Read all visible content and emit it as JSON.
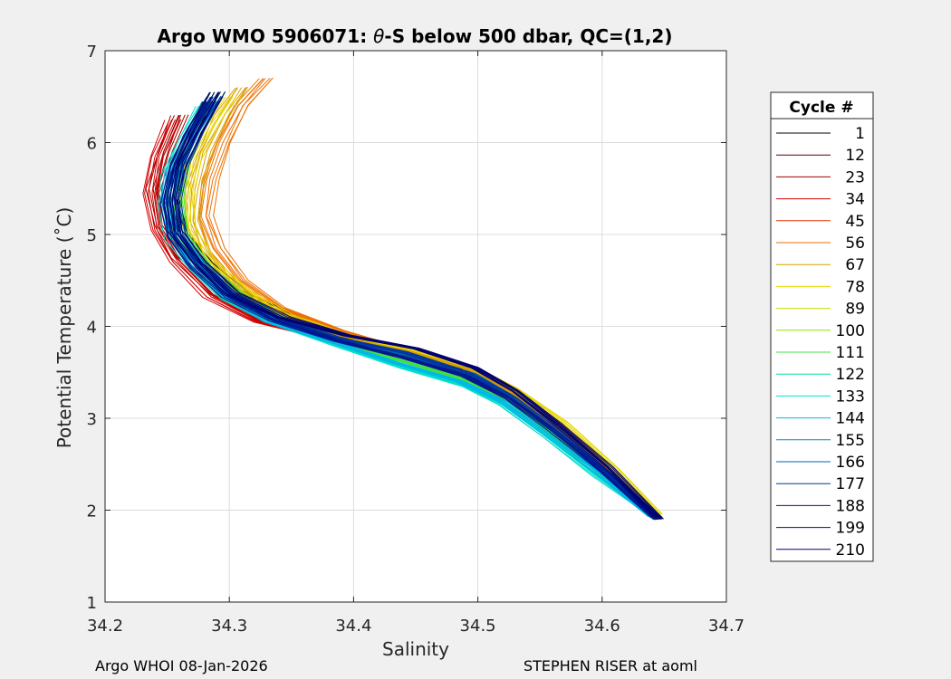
{
  "chart_data": {
    "type": "line",
    "title_prefix": "Argo WMO 5906071: ",
    "title_theta": "θ",
    "title_suffix": "-S below 500 dbar,  QC=(1,2)",
    "xlabel": "Salinity",
    "ylabel": "Potential Temperature (˚C)",
    "xlim": [
      34.2,
      34.7
    ],
    "ylim": [
      1,
      7
    ],
    "xticks": [
      "34.2",
      "34.3",
      "34.4",
      "34.5",
      "34.6",
      "34.7"
    ],
    "yticks": [
      "1",
      "2",
      "3",
      "4",
      "5",
      "6",
      "7"
    ],
    "grid": true,
    "legend": {
      "title": "Cycle #",
      "placement": "outside-right",
      "entries": [
        {
          "label": "1",
          "color": "#000000"
        },
        {
          "label": "12",
          "color": "#5c0000"
        },
        {
          "label": "23",
          "color": "#a00000"
        },
        {
          "label": "34",
          "color": "#d40000"
        },
        {
          "label": "45",
          "color": "#e63200"
        },
        {
          "label": "56",
          "color": "#ee7000"
        },
        {
          "label": "67",
          "color": "#d8a000"
        },
        {
          "label": "78",
          "color": "#e8d800"
        },
        {
          "label": "89",
          "color": "#c8e000"
        },
        {
          "label": "100",
          "color": "#90e000"
        },
        {
          "label": "111",
          "color": "#40e040"
        },
        {
          "label": "122",
          "color": "#00e090"
        },
        {
          "label": "133",
          "color": "#00e0c8"
        },
        {
          "label": "144",
          "color": "#00b8e8"
        },
        {
          "label": "155",
          "color": "#0088c0"
        },
        {
          "label": "166",
          "color": "#0060b0"
        },
        {
          "label": "177",
          "color": "#0038a0"
        },
        {
          "label": "188",
          "color": "#001890"
        },
        {
          "label": "199",
          "color": "#000c7c"
        },
        {
          "label": "210",
          "color": "#000070"
        }
      ]
    },
    "series": [
      {
        "color": "#000000",
        "points": [
          [
            34.285,
            6.45
          ],
          [
            34.27,
            6.1
          ],
          [
            34.258,
            5.7
          ],
          [
            34.255,
            5.35
          ],
          [
            34.262,
            5.0
          ],
          [
            34.28,
            4.7
          ],
          [
            34.31,
            4.35
          ],
          [
            34.35,
            4.1
          ],
          [
            34.4,
            3.85
          ],
          [
            34.45,
            3.7
          ],
          [
            34.5,
            3.5
          ],
          [
            34.53,
            3.25
          ],
          [
            34.56,
            2.9
          ],
          [
            34.6,
            2.45
          ],
          [
            34.645,
            1.9
          ]
        ]
      },
      {
        "color": "#a00000",
        "points": [
          [
            34.26,
            6.3
          ],
          [
            34.248,
            5.9
          ],
          [
            34.24,
            5.5
          ],
          [
            34.245,
            5.1
          ],
          [
            34.26,
            4.75
          ],
          [
            34.29,
            4.35
          ],
          [
            34.33,
            4.05
          ],
          [
            34.38,
            3.85
          ],
          [
            34.44,
            3.68
          ],
          [
            34.49,
            3.45
          ],
          [
            34.525,
            3.2
          ],
          [
            34.56,
            2.85
          ],
          [
            34.6,
            2.4
          ],
          [
            34.643,
            1.92
          ]
        ]
      },
      {
        "color": "#d40000",
        "points": [
          [
            34.255,
            6.25
          ],
          [
            34.242,
            5.85
          ],
          [
            34.237,
            5.45
          ],
          [
            34.243,
            5.05
          ],
          [
            34.258,
            4.7
          ],
          [
            34.285,
            4.32
          ],
          [
            34.325,
            4.05
          ],
          [
            34.375,
            3.88
          ],
          [
            34.43,
            3.72
          ],
          [
            34.485,
            3.5
          ],
          [
            34.52,
            3.25
          ],
          [
            34.555,
            2.9
          ],
          [
            34.595,
            2.45
          ],
          [
            34.64,
            1.95
          ]
        ]
      },
      {
        "color": "#ee7000",
        "points": [
          [
            34.33,
            6.7
          ],
          [
            34.31,
            6.4
          ],
          [
            34.295,
            6.0
          ],
          [
            34.285,
            5.6
          ],
          [
            34.28,
            5.2
          ],
          [
            34.29,
            4.85
          ],
          [
            34.31,
            4.5
          ],
          [
            34.34,
            4.2
          ],
          [
            34.39,
            3.95
          ],
          [
            34.44,
            3.75
          ],
          [
            34.49,
            3.55
          ],
          [
            34.525,
            3.28
          ],
          [
            34.56,
            2.95
          ],
          [
            34.6,
            2.5
          ],
          [
            34.642,
            1.95
          ]
        ]
      },
      {
        "color": "#d8a000",
        "points": [
          [
            34.31,
            6.6
          ],
          [
            34.295,
            6.3
          ],
          [
            34.28,
            5.9
          ],
          [
            34.272,
            5.5
          ],
          [
            34.27,
            5.15
          ],
          [
            34.28,
            4.8
          ],
          [
            34.3,
            4.45
          ],
          [
            34.335,
            4.15
          ],
          [
            34.385,
            3.92
          ],
          [
            34.44,
            3.74
          ],
          [
            34.49,
            3.55
          ],
          [
            34.525,
            3.3
          ],
          [
            34.565,
            2.95
          ],
          [
            34.6,
            2.5
          ],
          [
            34.645,
            1.92
          ]
        ]
      },
      {
        "color": "#e8d800",
        "points": [
          [
            34.3,
            6.5
          ],
          [
            34.285,
            6.2
          ],
          [
            34.27,
            5.8
          ],
          [
            34.265,
            5.4
          ],
          [
            34.268,
            5.05
          ],
          [
            34.285,
            4.7
          ],
          [
            34.31,
            4.4
          ],
          [
            34.345,
            4.12
          ],
          [
            34.395,
            3.9
          ],
          [
            34.45,
            3.74
          ],
          [
            34.495,
            3.56
          ],
          [
            34.53,
            3.32
          ],
          [
            34.57,
            2.95
          ],
          [
            34.61,
            2.45
          ],
          [
            34.645,
            1.95
          ]
        ]
      },
      {
        "color": "#40e040",
        "points": [
          [
            34.29,
            6.55
          ],
          [
            34.275,
            6.2
          ],
          [
            34.262,
            5.8
          ],
          [
            34.258,
            5.4
          ],
          [
            34.262,
            5.0
          ],
          [
            34.28,
            4.65
          ],
          [
            34.305,
            4.35
          ],
          [
            34.34,
            4.08
          ],
          [
            34.39,
            3.82
          ],
          [
            34.44,
            3.62
          ],
          [
            34.49,
            3.42
          ],
          [
            34.525,
            3.18
          ],
          [
            34.56,
            2.82
          ],
          [
            34.6,
            2.38
          ],
          [
            34.64,
            1.95
          ]
        ]
      },
      {
        "color": "#00e0c8",
        "points": [
          [
            34.28,
            6.4
          ],
          [
            34.265,
            6.05
          ],
          [
            34.252,
            5.65
          ],
          [
            34.248,
            5.3
          ],
          [
            34.255,
            4.95
          ],
          [
            34.275,
            4.6
          ],
          [
            34.3,
            4.3
          ],
          [
            34.335,
            4.05
          ],
          [
            34.385,
            3.8
          ],
          [
            34.44,
            3.55
          ],
          [
            34.49,
            3.35
          ],
          [
            34.52,
            3.15
          ],
          [
            34.555,
            2.8
          ],
          [
            34.595,
            2.38
          ],
          [
            34.64,
            1.95
          ]
        ]
      },
      {
        "color": "#00b8e8",
        "points": [
          [
            34.285,
            6.45
          ],
          [
            34.27,
            6.1
          ],
          [
            34.255,
            5.7
          ],
          [
            34.25,
            5.35
          ],
          [
            34.256,
            5.0
          ],
          [
            34.274,
            4.65
          ],
          [
            34.3,
            4.32
          ],
          [
            34.335,
            4.05
          ],
          [
            34.385,
            3.82
          ],
          [
            34.435,
            3.6
          ],
          [
            34.485,
            3.4
          ],
          [
            34.52,
            3.18
          ],
          [
            34.555,
            2.83
          ],
          [
            34.598,
            2.4
          ],
          [
            34.64,
            1.93
          ]
        ]
      },
      {
        "color": "#0060b0",
        "points": [
          [
            34.288,
            6.5
          ],
          [
            34.272,
            6.15
          ],
          [
            34.258,
            5.75
          ],
          [
            34.252,
            5.38
          ],
          [
            34.257,
            5.02
          ],
          [
            34.275,
            4.68
          ],
          [
            34.3,
            4.35
          ],
          [
            34.338,
            4.08
          ],
          [
            34.39,
            3.85
          ],
          [
            34.445,
            3.68
          ],
          [
            34.495,
            3.48
          ],
          [
            34.528,
            3.22
          ],
          [
            34.562,
            2.88
          ],
          [
            34.602,
            2.43
          ],
          [
            34.645,
            1.92
          ]
        ]
      },
      {
        "color": "#0038a0",
        "points": [
          [
            34.29,
            6.5
          ],
          [
            34.274,
            6.12
          ],
          [
            34.26,
            5.72
          ],
          [
            34.254,
            5.36
          ],
          [
            34.258,
            5.0
          ],
          [
            34.276,
            4.66
          ],
          [
            34.302,
            4.34
          ],
          [
            34.34,
            4.08
          ],
          [
            34.39,
            3.86
          ],
          [
            34.44,
            3.72
          ],
          [
            34.49,
            3.5
          ],
          [
            34.525,
            3.25
          ],
          [
            34.56,
            2.9
          ],
          [
            34.6,
            2.45
          ],
          [
            34.645,
            1.9
          ]
        ]
      },
      {
        "color": "#001890",
        "points": [
          [
            34.286,
            6.45
          ],
          [
            34.27,
            6.08
          ],
          [
            34.256,
            5.68
          ],
          [
            34.251,
            5.33
          ],
          [
            34.256,
            4.98
          ],
          [
            34.274,
            4.64
          ],
          [
            34.3,
            4.32
          ],
          [
            34.338,
            4.06
          ],
          [
            34.388,
            3.84
          ],
          [
            34.44,
            3.66
          ],
          [
            34.49,
            3.46
          ],
          [
            34.524,
            3.22
          ],
          [
            34.56,
            2.87
          ],
          [
            34.6,
            2.43
          ],
          [
            34.643,
            1.92
          ]
        ]
      },
      {
        "color": "#000070",
        "points": [
          [
            34.29,
            6.55
          ],
          [
            34.274,
            6.18
          ],
          [
            34.259,
            5.78
          ],
          [
            34.253,
            5.4
          ],
          [
            34.257,
            5.04
          ],
          [
            34.276,
            4.7
          ],
          [
            34.302,
            4.36
          ],
          [
            34.342,
            4.1
          ],
          [
            34.395,
            3.9
          ],
          [
            34.45,
            3.76
          ],
          [
            34.498,
            3.55
          ],
          [
            34.53,
            3.3
          ],
          [
            34.565,
            2.93
          ],
          [
            34.605,
            2.47
          ],
          [
            34.646,
            1.9
          ]
        ]
      }
    ],
    "bundle": {
      "offsets": [
        -0.006,
        -0.004,
        -0.002,
        0.0,
        0.002,
        0.004,
        0.006
      ]
    }
  },
  "footer": {
    "left": "Argo WHOI 08-Jan-2026",
    "right": "STEPHEN RISER at aoml"
  }
}
